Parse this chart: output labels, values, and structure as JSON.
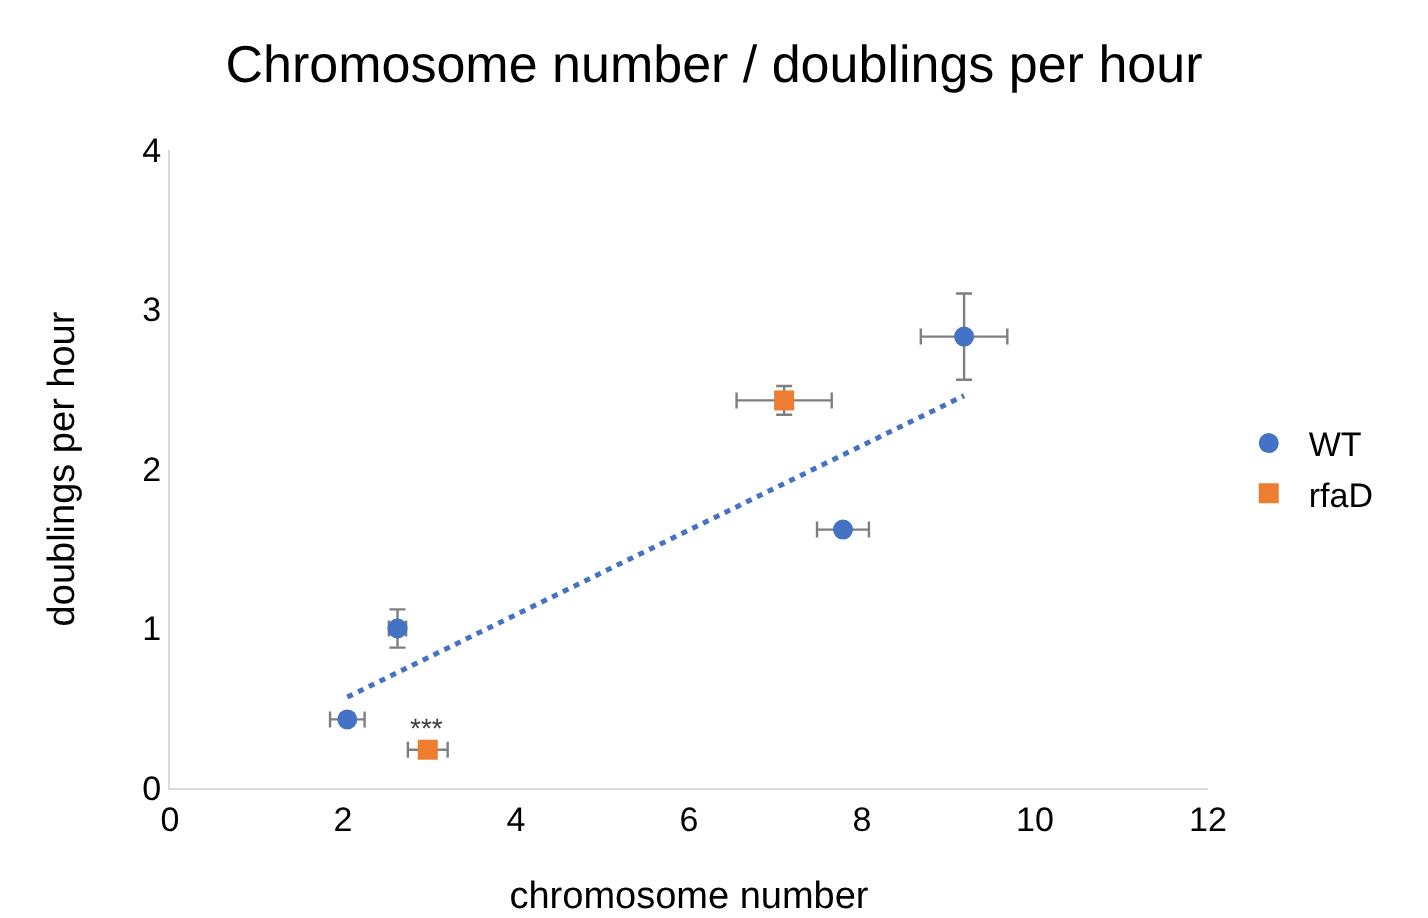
{
  "chart_data": {
    "type": "scatter",
    "title": "Chromosome number / doublings per hour",
    "xlabel": "chromosome number",
    "ylabel": "doublings per hour",
    "xlim": [
      0,
      12
    ],
    "xticks": [
      0,
      2,
      4,
      6,
      8,
      10,
      12
    ],
    "ylim": [
      0,
      4
    ],
    "yticks": [
      0,
      1,
      2,
      3,
      4
    ],
    "grid": false,
    "legend": "right",
    "series": [
      {
        "name": "WT",
        "color": "#4472c4",
        "marker": "circle",
        "x": [
          2.05,
          2.63,
          7.78,
          9.18
        ],
        "values": [
          0.43,
          1.0,
          1.62,
          2.83
        ],
        "errors": [
          null,
          0.12,
          null,
          0.27
        ],
        "xerrors": [
          0.2,
          0.1,
          0.3,
          0.5
        ]
      },
      {
        "name": "rfaD",
        "color": "#ed7d31",
        "marker": "square",
        "x": [
          2.98,
          7.1
        ],
        "values": [
          0.24,
          2.43
        ],
        "errors": [
          null,
          0.09
        ],
        "xerrors": [
          0.23,
          0.55
        ]
      },
      {
        "type": "line",
        "color": "#4472c4",
        "marker": "none",
        "line_style": "dotted",
        "x": [
          2.05,
          9.18
        ],
        "values": [
          0.57,
          2.46
        ]
      }
    ],
    "annotations": [
      "***"
    ]
  }
}
